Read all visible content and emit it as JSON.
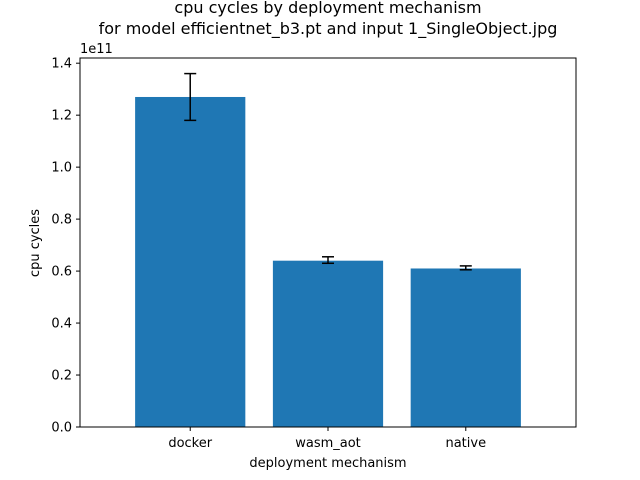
{
  "chart_data": {
    "type": "bar",
    "title_line1": "cpu cycles by deployment mechanism",
    "title_line2": "for model efficientnet_b3.pt and input 1_SingleObject.jpg",
    "xlabel": "deployment mechanism",
    "ylabel": "cpu cycles",
    "y_offset_label": "1e11",
    "categories": [
      "docker",
      "wasm_aot",
      "native"
    ],
    "values": [
      127000000000.0,
      64000000000.0,
      61000000000.0
    ],
    "error_low": [
      118000000000.0,
      63000000000.0,
      60500000000.0
    ],
    "error_high": [
      136000000000.0,
      65500000000.0,
      62000000000.0
    ],
    "y_ticks": [
      0.0,
      0.2,
      0.4,
      0.6,
      0.8,
      1.0,
      1.2,
      1.4
    ],
    "y_tick_labels": [
      "0.0",
      "0.2",
      "0.4",
      "0.6",
      "0.8",
      "1.0",
      "1.2",
      "1.4"
    ],
    "ylim": [
      0,
      142000000000.0
    ],
    "bar_color": "#1f77b4",
    "grid": false,
    "legend": "none"
  }
}
